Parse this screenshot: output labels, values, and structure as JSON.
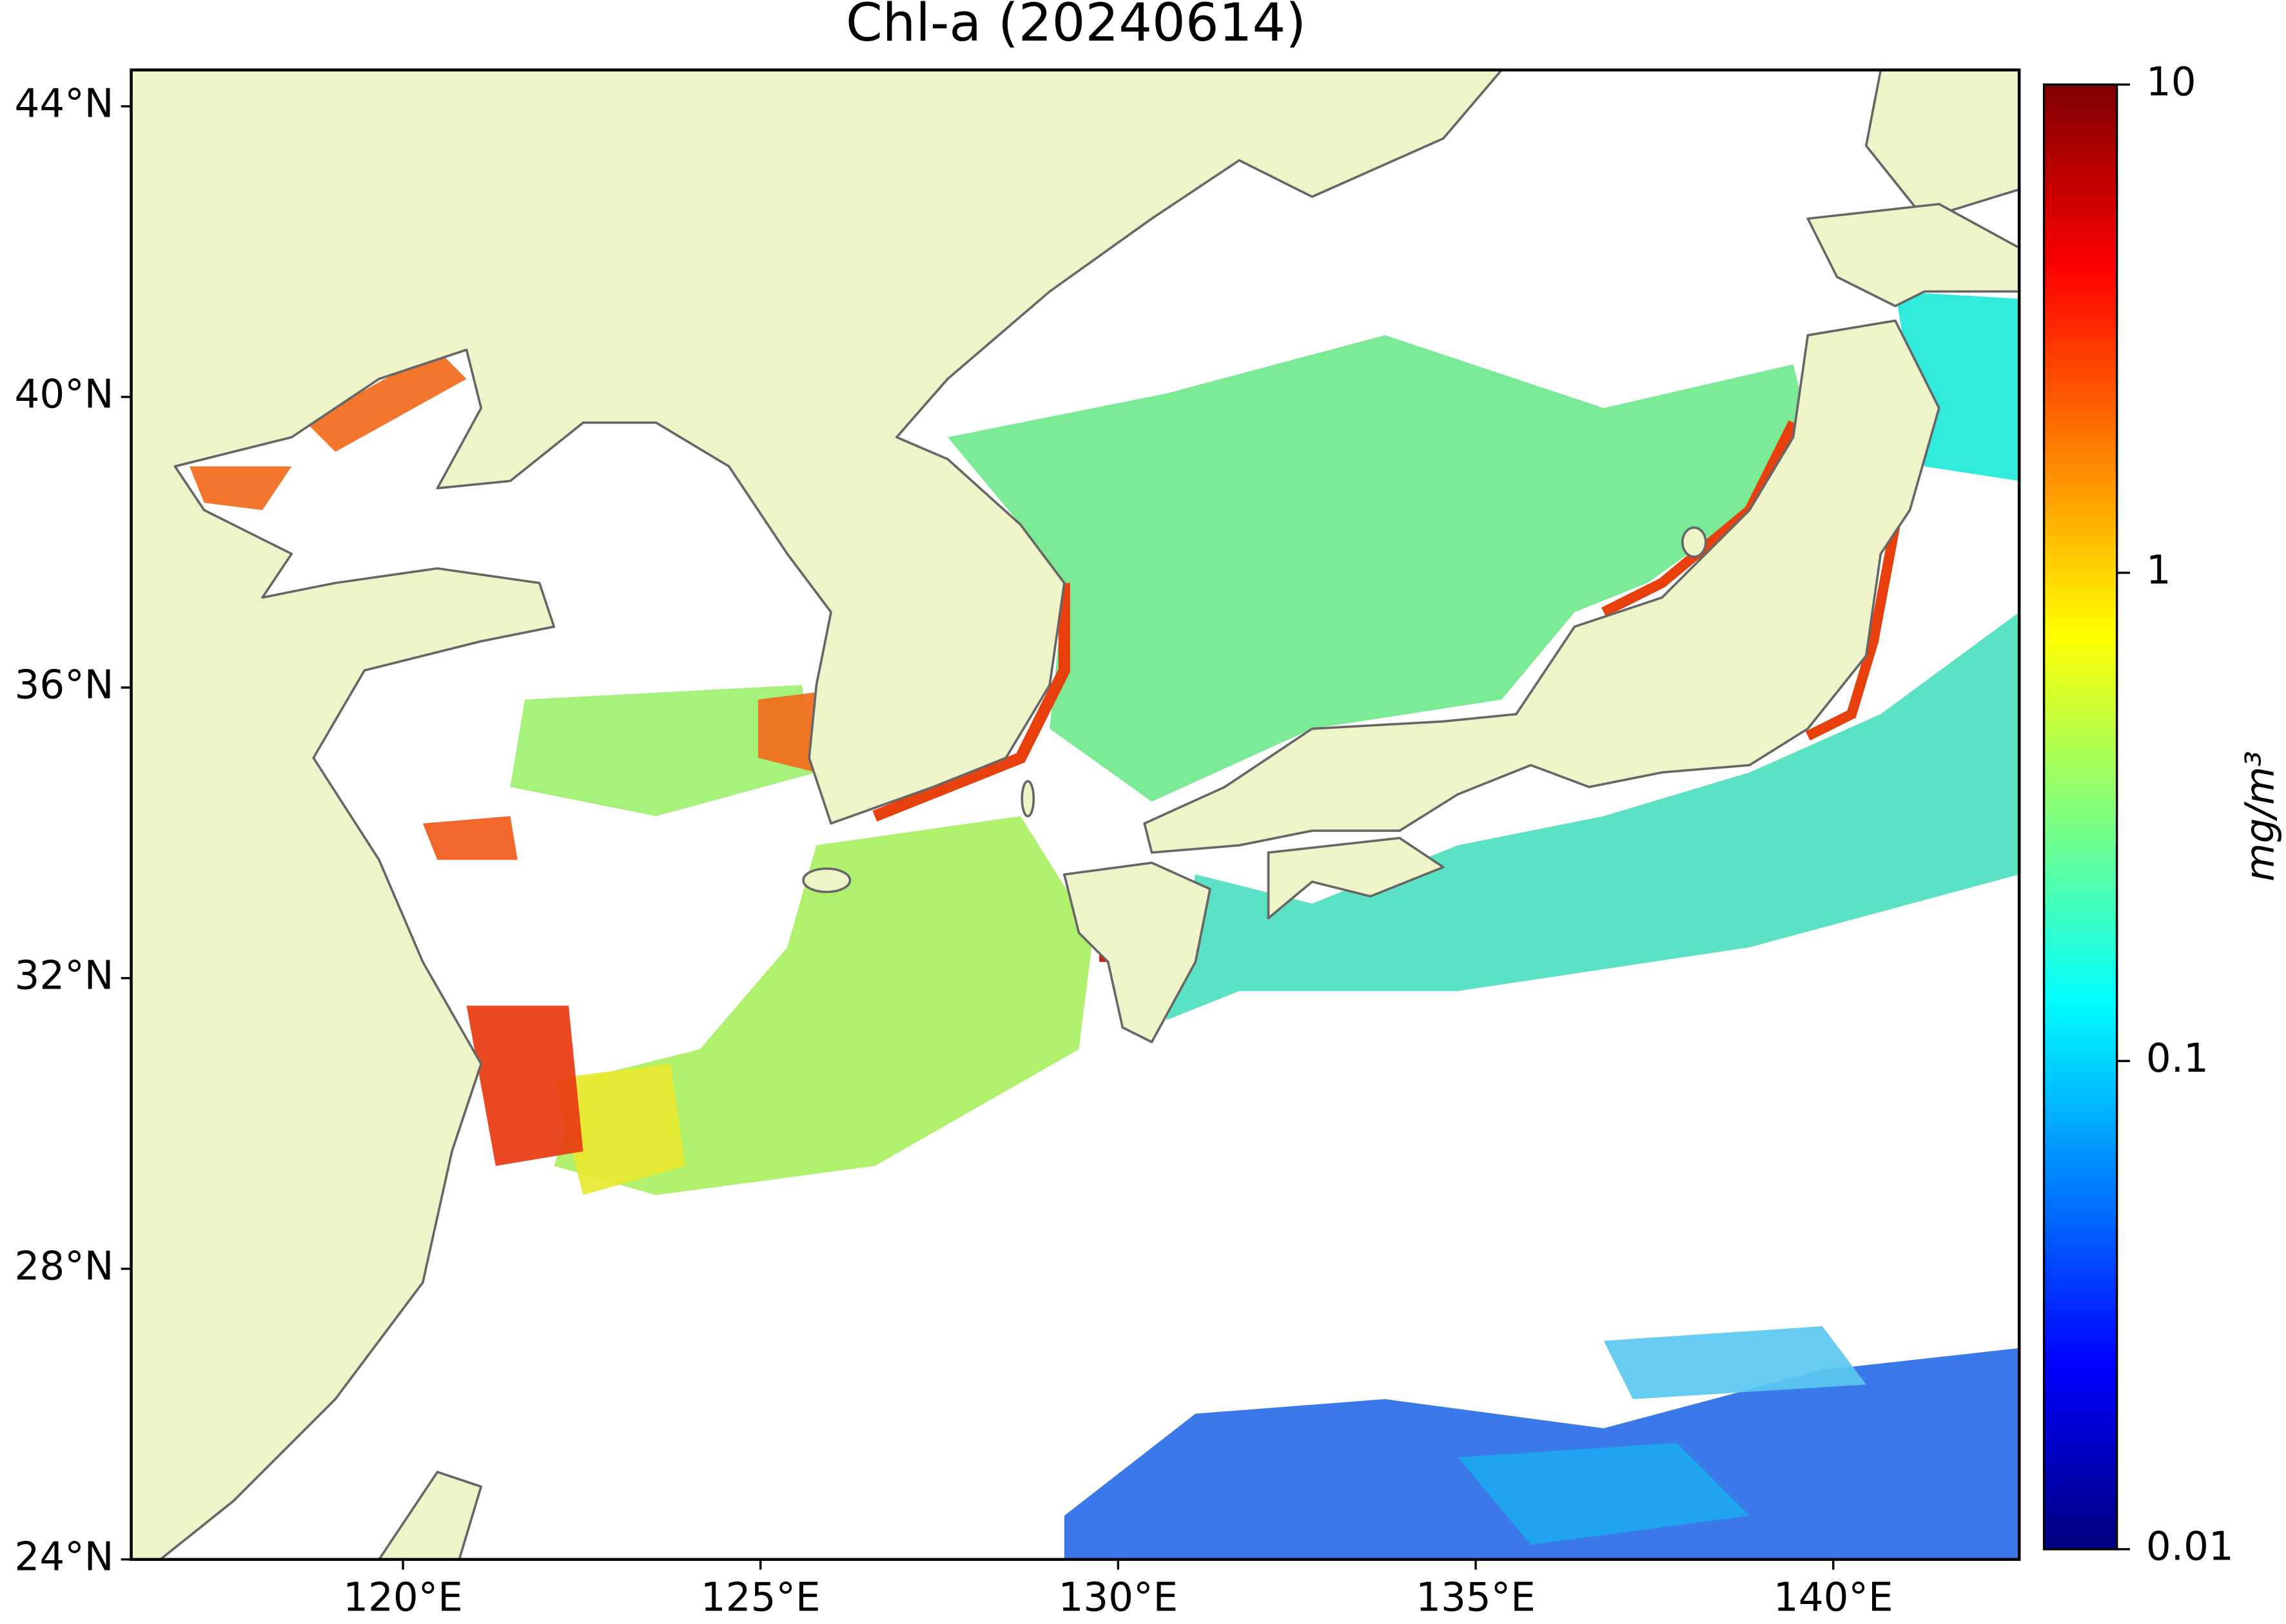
{
  "chart_data": {
    "type": "map",
    "title": "Chl-a (20240614)",
    "xlim": [
      116.2,
      142.6
    ],
    "ylim": [
      24,
      44.5
    ],
    "xticks": [
      {
        "value": 120,
        "label": "120°E"
      },
      {
        "value": 125,
        "label": "125°E"
      },
      {
        "value": 130,
        "label": "130°E"
      },
      {
        "value": 135,
        "label": "135°E"
      },
      {
        "value": 140,
        "label": "140°E"
      }
    ],
    "yticks": [
      {
        "value": 24,
        "label": "24°N"
      },
      {
        "value": 28,
        "label": "28°N"
      },
      {
        "value": 32,
        "label": "32°N"
      },
      {
        "value": 36,
        "label": "36°N"
      },
      {
        "value": 40,
        "label": "40°N"
      },
      {
        "value": 44,
        "label": "44°N"
      }
    ],
    "colorbar": {
      "label": "mg/m³",
      "log_scale": true,
      "lim": [
        0.01,
        10
      ],
      "ticks": [
        0.01,
        0.1,
        1,
        10
      ]
    }
  }
}
